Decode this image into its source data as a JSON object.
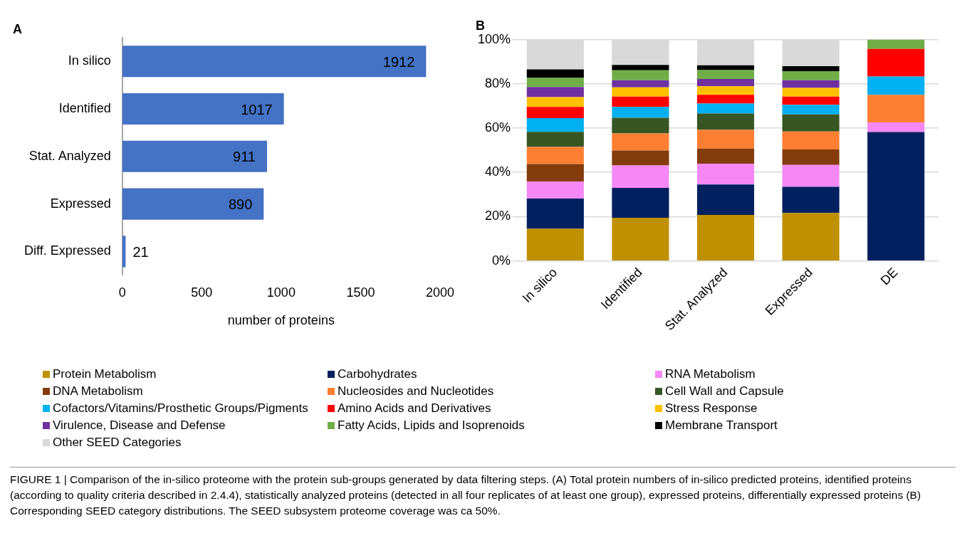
{
  "chart_data": [
    {
      "type": "bar",
      "title": "A",
      "orientation": "horizontal",
      "xlabel": "number of proteins",
      "categories": [
        "In silico",
        "Identified",
        "Stat. Analyzed",
        "Expressed",
        "Diff. Expressed"
      ],
      "values": [
        1912,
        1017,
        911,
        890,
        21
      ],
      "color": "#4472c4",
      "data_labels": true,
      "xlim": [
        0,
        2000
      ],
      "xticks": [
        0,
        500,
        1000,
        1500,
        2000
      ]
    },
    {
      "type": "bar",
      "title": "B",
      "stacked": true,
      "grid": "y",
      "legend": "bottom",
      "categories": [
        "In silico",
        "Identified",
        "Stat. Analyzed",
        "Expressed",
        "DE"
      ],
      "ylim": [
        0,
        100
      ],
      "yticks": [
        {
          "value": 0,
          "label": "0%"
        },
        {
          "value": 20,
          "label": "20%"
        },
        {
          "value": 40,
          "label": "40%"
        },
        {
          "value": 60,
          "label": "60%"
        },
        {
          "value": 80,
          "label": "80%"
        },
        {
          "value": 100,
          "label": "100%"
        }
      ],
      "series": [
        {
          "name": "Protein Metabolism",
          "color": "#bf9000",
          "values": [
            14.5,
            19.5,
            20.8,
            21.7,
            0
          ]
        },
        {
          "name": "Carbohydrates",
          "color": "#002060",
          "values": [
            13.7,
            13.5,
            13.7,
            11.8,
            58.2
          ]
        },
        {
          "name": "RNA Metabolism",
          "color": "#f588f5",
          "values": [
            7.7,
            10.1,
            9.4,
            9.9,
            4.4
          ]
        },
        {
          "name": "DNA Metabolism",
          "color": "#843c0c",
          "values": [
            7.9,
            6.8,
            6.9,
            7.0,
            0
          ]
        },
        {
          "name": "Nucleosides and Nucleotides",
          "color": "#ff7f32",
          "values": [
            7.7,
            7.7,
            8.4,
            8.1,
            12.4
          ]
        },
        {
          "name": "Cell Wall and Capsule",
          "color": "#375623",
          "values": [
            6.8,
            7.1,
            7.4,
            7.7,
            0
          ]
        },
        {
          "name": "Cofactors/Vitamins/Prosthetic Groups/Pigments",
          "color": "#00b0f0",
          "values": [
            6.2,
            4.9,
            4.5,
            4.3,
            8.3
          ]
        },
        {
          "name": "Amino Acids and Derivatives",
          "color": "#ff0000",
          "values": [
            5.1,
            4.6,
            3.9,
            3.7,
            12.5
          ]
        },
        {
          "name": "Stress Response",
          "color": "#ffc000",
          "values": [
            4.4,
            4.2,
            3.9,
            4.0,
            0
          ]
        },
        {
          "name": "Virulence, Disease and Defense",
          "color": "#7030a0",
          "values": [
            4.6,
            3.2,
            3.3,
            3.4,
            0
          ]
        },
        {
          "name": "Fatty Acids, Lipids and Isoprenoids",
          "color": "#70ad47",
          "values": [
            4.1,
            4.5,
            4.0,
            4.1,
            4.2
          ]
        },
        {
          "name": "Membrane Transport",
          "color": "#000000",
          "values": [
            3.8,
            2.4,
            2.2,
            2.3,
            0
          ]
        },
        {
          "name": "Other SEED Categories",
          "color": "#d9d9d9",
          "values": [
            13.5,
            11.5,
            11.6,
            12.0,
            0
          ]
        }
      ],
      "annotations": [
        "FIGURE 1 | Comparison of the in-silico proteome with the protein sub-groups generated by data filtering steps. (A) Total protein numbers of in-silico predicted proteins, identified proteins (according to quality criteria described in 2.4.4), statistically analyzed proteins (detected in all four replicates of at least one group), expressed proteins, differentially expressed proteins (B) Corresponding SEED category distributions. The SEED subsystem proteome coverage was ca 50%."
      ]
    }
  ]
}
